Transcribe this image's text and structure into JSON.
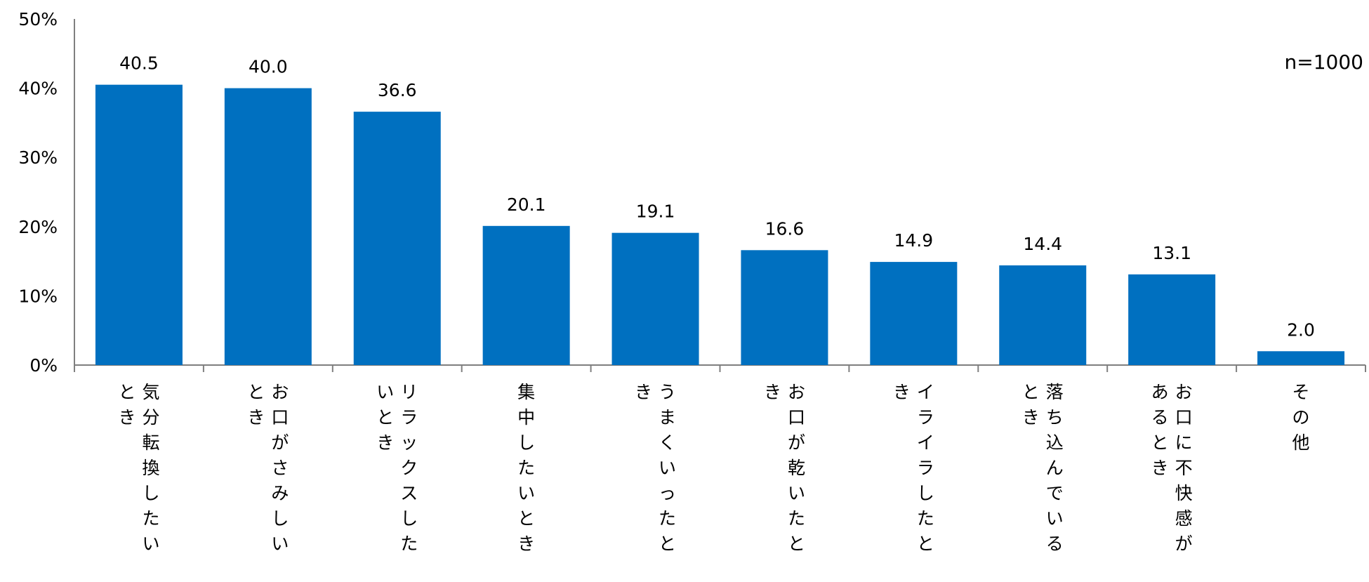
{
  "chart_data": {
    "type": "bar",
    "categories": [
      "気分転換したいとき",
      "お口がさみしいとき",
      "リラックスしたいとき",
      "集中したいとき",
      "うまくいったとき",
      "お口が乾いたとき",
      "イライラしたとき",
      "落ち込んでいるとき",
      "お口に不快感があるとき",
      "その他"
    ],
    "values": [
      40.5,
      40.0,
      36.6,
      20.1,
      19.1,
      16.6,
      14.9,
      14.4,
      13.1,
      2.0
    ],
    "data_labels": [
      "40.5",
      "40.0",
      "36.6",
      "20.1",
      "19.1",
      "16.6",
      "14.9",
      "14.4",
      "13.1",
      "2.0"
    ],
    "y_tick_labels": [
      "0%",
      "10%",
      "20%",
      "30%",
      "40%",
      "50%"
    ],
    "y_ticks": [
      0,
      10,
      20,
      30,
      40,
      50
    ],
    "ylim": [
      0,
      50
    ],
    "annotation": "n=1000",
    "bar_color": "#0070C0",
    "grid": false
  }
}
